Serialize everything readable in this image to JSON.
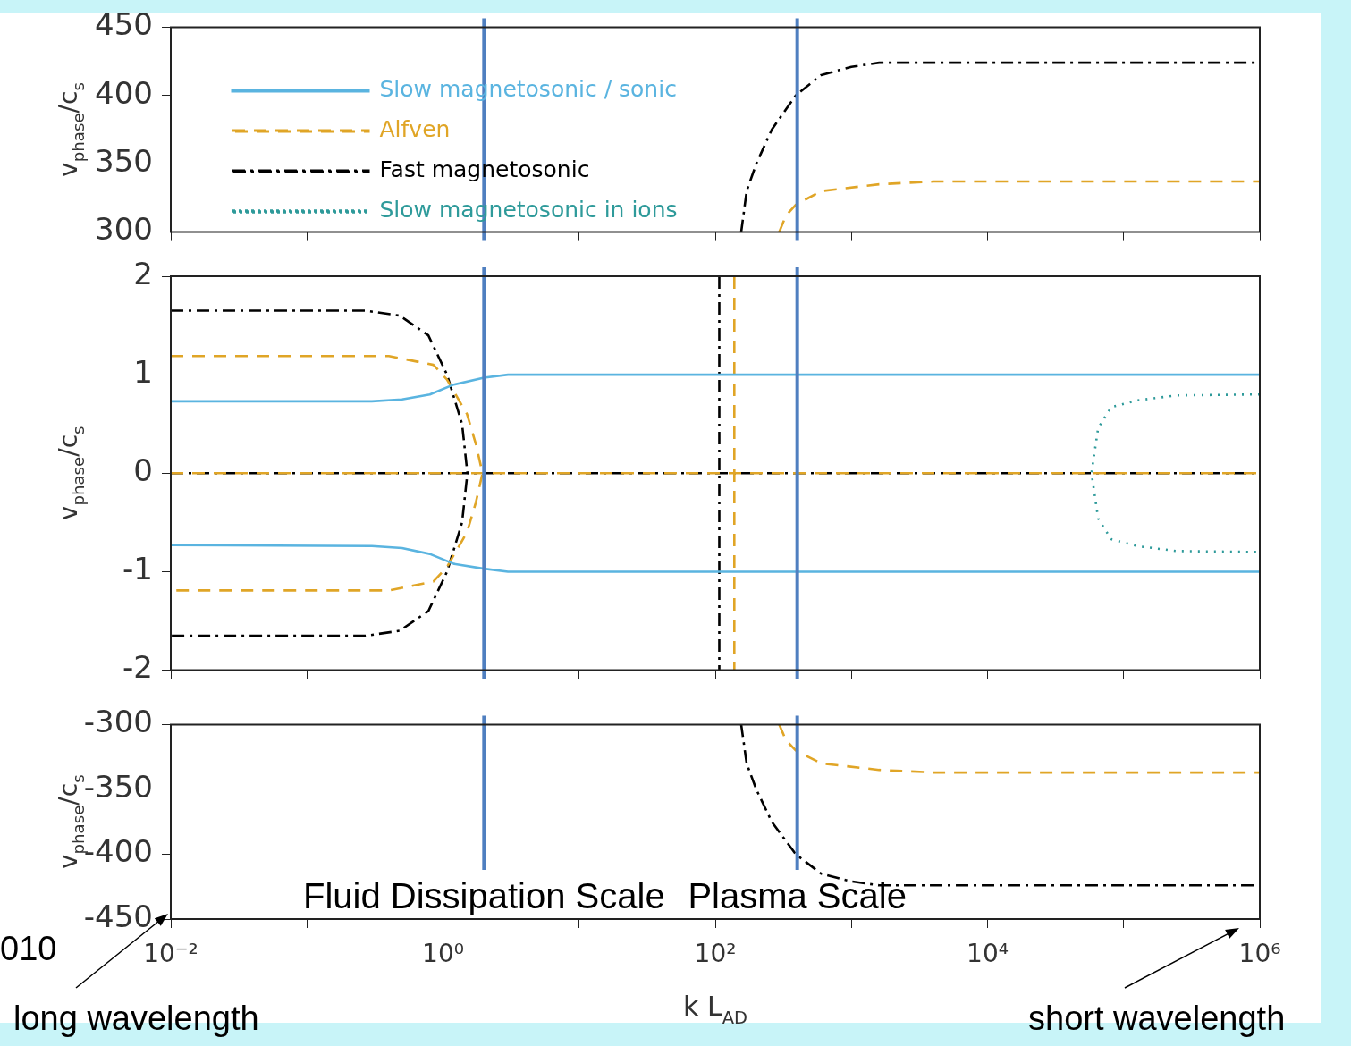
{
  "chart_data": [
    {
      "type": "line",
      "ylabel": "v$_{phase}$/c$_{s}$",
      "log": "x",
      "grid": false,
      "tick_labels": "y",
      "xlim": [
        0.01,
        1000000
      ],
      "xticks": [
        0.01,
        0.1,
        1,
        10,
        100,
        1000,
        10000,
        100000,
        1000000
      ],
      "ylim": [
        300,
        450
      ],
      "yticks": [
        300,
        350,
        400,
        450
      ],
      "ref_lines": [
        {
          "axis": "x",
          "value": 2,
          "color": "#4f7fc0"
        },
        {
          "axis": "x",
          "value": 400,
          "color": "#4f7fc0"
        }
      ],
      "series": [
        {
          "color": "#e0a526",
          "line_style": "dashed",
          "x": [
            295,
            330,
            390,
            600,
            1600,
            4000,
            1000000
          ],
          "values": [
            300,
            312,
            320,
            330,
            335,
            337,
            337
          ]
        },
        {
          "color": "#000000",
          "line_style": "dashdot",
          "x": [
            155,
            170,
            200,
            260,
            390,
            600,
            1000,
            1600,
            1000000
          ],
          "values": [
            300,
            330,
            350,
            375,
            400,
            415,
            421,
            424,
            424
          ]
        }
      ]
    },
    {
      "type": "line",
      "ylabel": "v$_{phase}$/c$_{s}$",
      "log": "x",
      "grid": false,
      "tick_labels": "y",
      "legend": "top left",
      "xlim": [
        0.01,
        1000000
      ],
      "xticks": [
        0.01,
        0.1,
        1,
        10,
        100,
        1000,
        10000,
        100000,
        1000000
      ],
      "ylim": [
        -2,
        2
      ],
      "yticks": [
        -2,
        -1,
        0,
        1,
        2
      ],
      "ref_lines": [
        {
          "axis": "x",
          "value": 2,
          "color": "#4f7fc0"
        },
        {
          "axis": "x",
          "value": 400,
          "color": "#4f7fc0"
        }
      ],
      "series": [
        {
          "name": "Slow magnetosonic / sonic",
          "color": "#5ab4e0",
          "line_style": "solid",
          "x": [
            0.01,
            0.3,
            0.5,
            0.8,
            1.2,
            2,
            3,
            1000000
          ],
          "values": [
            0.73,
            0.73,
            0.75,
            0.8,
            0.9,
            0.97,
            1,
            1
          ]
        },
        {
          "color": "#5ab4e0",
          "line_style": "solid",
          "x": [
            0.01,
            0.3,
            0.5,
            0.8,
            1.2,
            2,
            3,
            1000000
          ],
          "values": [
            -0.73,
            -0.74,
            -0.76,
            -0.82,
            -0.92,
            -0.97,
            -1,
            -1
          ]
        },
        {
          "name": "Alfven",
          "color": "#e0a526",
          "line_style": "dashed",
          "x": [
            0.01,
            0.4,
            0.85,
            1.07,
            1.5,
            1.74,
            1.95,
            1.74,
            1.5,
            1.07,
            0.85,
            0.4,
            0.01
          ],
          "values": [
            1.19,
            1.19,
            1.1,
            0.95,
            0.6,
            0.3,
            0,
            -0.3,
            -0.6,
            -0.95,
            -1.1,
            -1.19,
            -1.19
          ]
        },
        {
          "color": "#e0a526",
          "line_style": "dashed",
          "x": [
            0.01,
            1000000
          ],
          "values": [
            0,
            0
          ]
        },
        {
          "color": "#e0a526",
          "line_style": "dashed",
          "x": [
            138,
            138
          ],
          "values": [
            2,
            -2
          ]
        },
        {
          "name": "Fast magnetosonic",
          "color": "#000000",
          "line_style": "dashdot",
          "x": [
            0.01,
            0.27,
            0.48,
            0.78,
            1.07,
            1.38,
            1.51,
            1.38,
            1.07,
            0.78,
            0.48,
            0.27,
            0.01
          ],
          "values": [
            1.65,
            1.65,
            1.6,
            1.4,
            1,
            0.5,
            0,
            -0.5,
            -1,
            -1.4,
            -1.6,
            -1.65,
            -1.65
          ]
        },
        {
          "color": "#000000",
          "line_style": "dashdot",
          "x": [
            0.01,
            1000000
          ],
          "values": [
            0,
            0
          ]
        },
        {
          "color": "#000000",
          "line_style": "dashdot",
          "x": [
            107,
            107
          ],
          "values": [
            2,
            -2
          ]
        },
        {
          "name": "Slow magnetosonic in ions",
          "color": "#2e9a9a",
          "line_style": "dotted",
          "x": [
            1000000,
            245000,
            126000,
            81000,
            65000,
            58000,
            65000,
            81000,
            126000,
            245000,
            1000000
          ],
          "values": [
            0.8,
            0.79,
            0.74,
            0.67,
            0.46,
            0,
            -0.46,
            -0.67,
            -0.74,
            -0.79,
            -0.8
          ]
        }
      ]
    },
    {
      "type": "line",
      "ylabel": "v$_{phase}$/c$_{s}$",
      "xlabel": "k L$_{AD}$",
      "log": "x",
      "grid": false,
      "xlim": [
        0.01,
        1000000
      ],
      "xticks": [
        {
          "value": 0.01,
          "label": "10⁻²"
        },
        {
          "value": 0.1,
          "label": null
        },
        {
          "value": 1,
          "label": "10⁰"
        },
        {
          "value": 10,
          "label": null
        },
        {
          "value": 100,
          "label": "10²"
        },
        {
          "value": 1000,
          "label": null
        },
        {
          "value": 10000,
          "label": "10⁴"
        },
        {
          "value": 100000,
          "label": null
        },
        {
          "value": 1000000,
          "label": "10⁶"
        }
      ],
      "ylim": [
        -450,
        -300
      ],
      "yticks": [
        -450,
        -400,
        -350,
        -300
      ],
      "ref_lines": [
        {
          "axis": "x",
          "value": 2,
          "label": "Fluid Dissipation Scale",
          "color": "#4f7fc0"
        },
        {
          "axis": "x",
          "value": 400,
          "label": "Plasma Scale",
          "color": "#4f7fc0"
        }
      ],
      "annotations": [
        "010",
        "long wavelength",
        "short wavelength"
      ],
      "series": [
        {
          "color": "#e0a526",
          "line_style": "dashed",
          "x": [
            295,
            330,
            390,
            600,
            1600,
            4000,
            1000000
          ],
          "values": [
            -300,
            -312,
            -320,
            -330,
            -335,
            -337,
            -337
          ]
        },
        {
          "color": "#000000",
          "line_style": "dashdot",
          "x": [
            155,
            170,
            200,
            260,
            390,
            600,
            1000,
            1600,
            1000000
          ],
          "values": [
            -300,
            -330,
            -350,
            -375,
            -400,
            -415,
            -421,
            -424,
            -424
          ]
        }
      ]
    }
  ]
}
